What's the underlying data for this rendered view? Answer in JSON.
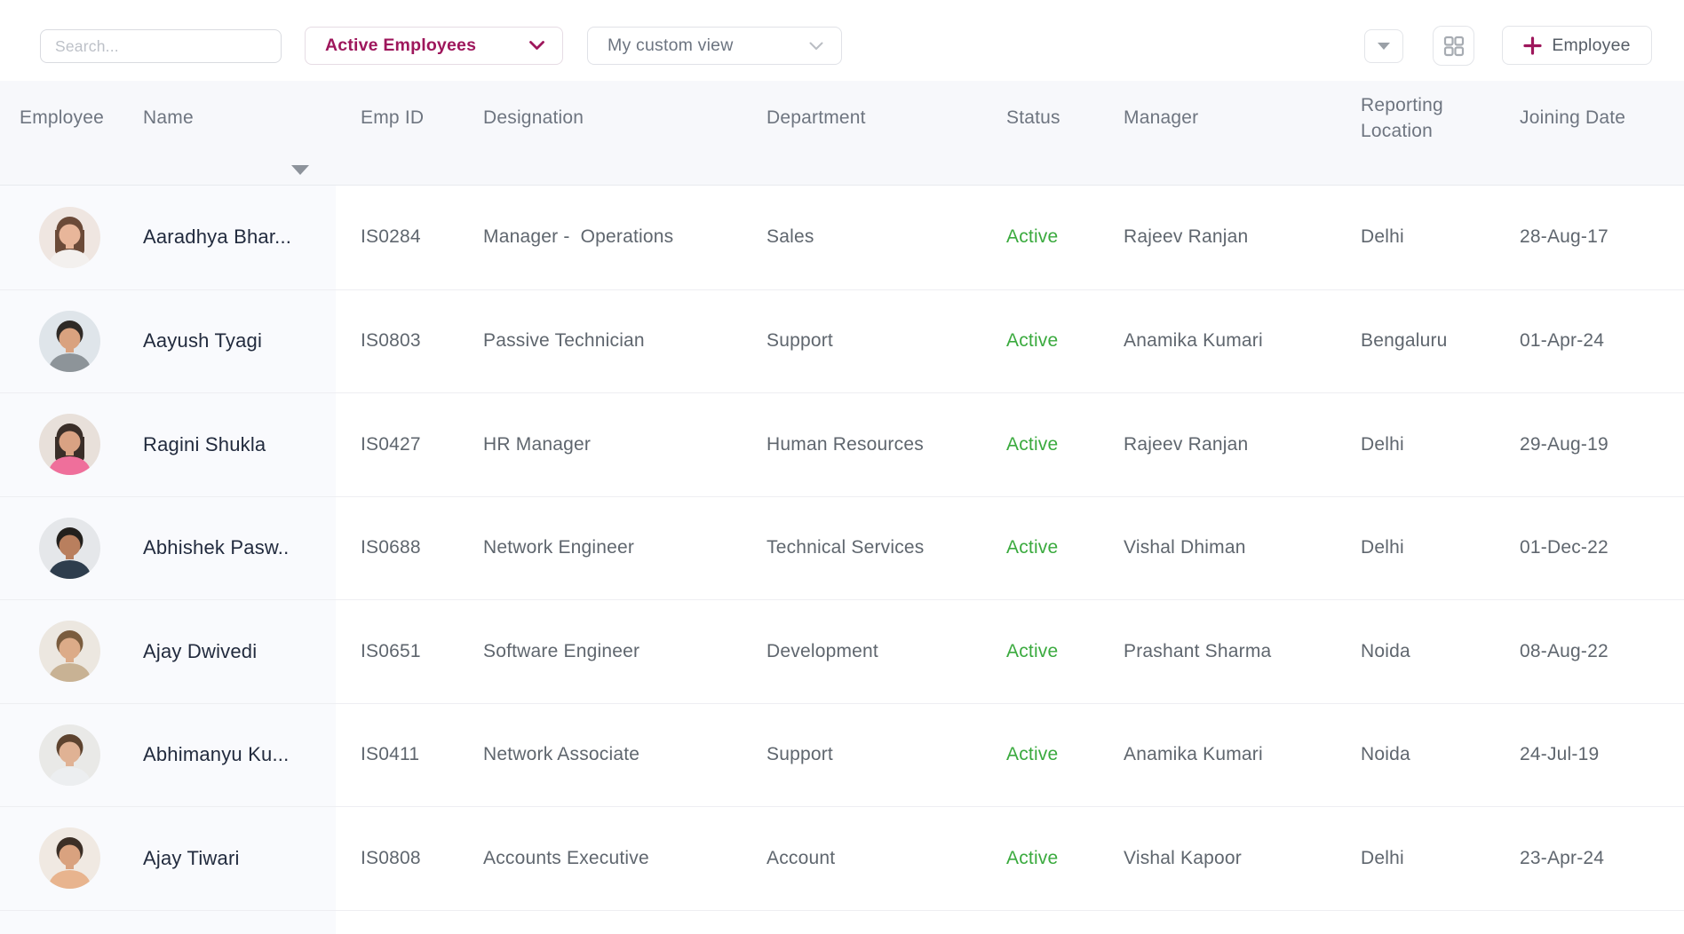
{
  "toolbar": {
    "search_placeholder": "Search...",
    "employee_filter": {
      "value": "Active Employees"
    },
    "view_selector": {
      "value": "My custom view"
    },
    "add_employee_button": {
      "label": "Employee"
    },
    "icons": {
      "employee_filter_chevron": "chevron-down",
      "view_selector_chevron": "chevron-down",
      "bulk_action_button": "caret-down",
      "layout_toggle_button": "grid-2x2",
      "add_employee": "plus",
      "name_sort": "triangle-down"
    }
  },
  "colors": {
    "accent_magenta": "#9e175c",
    "status_active_green": "#3aaa3e",
    "header_background": "#f7f8fb",
    "frozen_column_background": "#f9fafd",
    "name_text": "#222b3e",
    "cell_text": "#5f666e"
  },
  "table": {
    "columns": [
      {
        "key": "employee",
        "label": "Employee"
      },
      {
        "key": "name",
        "label": "Name",
        "sorted": true
      },
      {
        "key": "emp_id",
        "label": "Emp ID"
      },
      {
        "key": "designation",
        "label": "Designation"
      },
      {
        "key": "department",
        "label": "Department"
      },
      {
        "key": "status",
        "label": "Status"
      },
      {
        "key": "manager",
        "label": "Manager"
      },
      {
        "key": "reporting_location",
        "label": "Reporting Location"
      },
      {
        "key": "joining_date",
        "label": "Joining Date"
      }
    ],
    "rows": [
      {
        "name": "Aaradhya Bhar...",
        "emp_id": "IS0284",
        "designation": "Manager -  Operations",
        "department": "Sales",
        "status": "Active",
        "manager": "Rajeev Ranjan",
        "reporting_location": "Delhi",
        "joining_date": "28-Aug-17",
        "avatar": {
          "hairstyle": "long",
          "bg": "#efe6e1",
          "hair": "#6b4a38",
          "skin": "#e8b69a",
          "shirt": "#f3f0ee"
        }
      },
      {
        "name": "Aayush Tyagi",
        "emp_id": "IS0803",
        "designation": "Passive Technician",
        "department": "Support",
        "status": "Active",
        "manager": "Anamika Kumari",
        "reporting_location": "Bengaluru",
        "joining_date": "01-Apr-24",
        "avatar": {
          "hairstyle": "short",
          "bg": "#dfe5ea",
          "hair": "#2f2a26",
          "skin": "#d9a27f",
          "shirt": "#8d9499"
        }
      },
      {
        "name": "Ragini Shukla",
        "emp_id": "IS0427",
        "designation": "HR Manager",
        "department": "Human Resources",
        "status": "Active",
        "manager": "Rajeev Ranjan",
        "reporting_location": "Delhi",
        "joining_date": "29-Aug-19",
        "avatar": {
          "hairstyle": "long",
          "bg": "#e8e0da",
          "hair": "#3a2e28",
          "skin": "#d9a283",
          "shirt": "#ef6f9b"
        }
      },
      {
        "name": "Abhishek Pasw..",
        "emp_id": "IS0688",
        "designation": "Network Engineer",
        "department": "Technical Services",
        "status": "Active",
        "manager": "Vishal Dhiman",
        "reporting_location": "Delhi",
        "joining_date": "01-Dec-22",
        "avatar": {
          "hairstyle": "short",
          "bg": "#e5e7ea",
          "hair": "#23201d",
          "skin": "#b97f5e",
          "shirt": "#2e3d4d"
        }
      },
      {
        "name": "Ajay Dwivedi",
        "emp_id": "IS0651",
        "designation": "Software Engineer",
        "department": "Development",
        "status": "Active",
        "manager": "Prashant Sharma",
        "reporting_location": "Noida",
        "joining_date": "08-Aug-22",
        "avatar": {
          "hairstyle": "short",
          "bg": "#ece7e0",
          "hair": "#7a5c3e",
          "skin": "#dcab88",
          "shirt": "#c8b294"
        }
      },
      {
        "name": "Abhimanyu Ku...",
        "emp_id": "IS0411",
        "designation": "Network Associate",
        "department": "Support",
        "status": "Active",
        "manager": "Anamika Kumari",
        "reporting_location": "Noida",
        "joining_date": "24-Jul-19",
        "avatar": {
          "hairstyle": "short",
          "bg": "#e9e9e7",
          "hair": "#5d432f",
          "skin": "#e0b294",
          "shirt": "#eceef0"
        }
      },
      {
        "name": "Ajay Tiwari",
        "emp_id": "IS0808",
        "designation": "Accounts Executive",
        "department": "Account",
        "status": "Active",
        "manager": "Vishal Kapoor",
        "reporting_location": "Delhi",
        "joining_date": "23-Apr-24",
        "avatar": {
          "hairstyle": "short",
          "bg": "#f0e9e2",
          "hair": "#3c2f26",
          "skin": "#d9a27f",
          "shirt": "#e8b48e"
        }
      }
    ]
  }
}
